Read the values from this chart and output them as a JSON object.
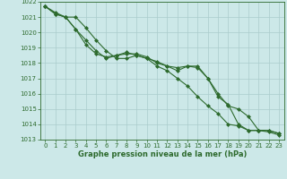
{
  "xlabel": "Graphe pression niveau de la mer (hPa)",
  "x": [
    0,
    1,
    2,
    3,
    4,
    5,
    6,
    7,
    8,
    9,
    10,
    11,
    12,
    13,
    14,
    15,
    16,
    17,
    18,
    19,
    20,
    21,
    22,
    23
  ],
  "line1": [
    1021.7,
    1021.2,
    1021.0,
    1021.0,
    1020.3,
    1019.5,
    1018.8,
    1018.3,
    1018.3,
    1018.5,
    1018.3,
    1018.1,
    1017.8,
    1017.7,
    1017.8,
    1017.7,
    1017.0,
    1015.8,
    1015.3,
    1014.0,
    1013.6,
    1013.6,
    1013.6,
    1013.4
  ],
  "line2": [
    1021.7,
    1021.2,
    1021.0,
    1020.2,
    1019.2,
    1018.6,
    1018.4,
    1018.5,
    1018.6,
    1018.6,
    1018.4,
    1018.0,
    1017.8,
    1017.5,
    1017.8,
    1017.8,
    1017.0,
    1016.0,
    1015.2,
    1015.0,
    1014.5,
    1013.6,
    1013.6,
    1013.4
  ],
  "line3": [
    1021.7,
    1021.3,
    1021.0,
    1020.2,
    1019.5,
    1018.8,
    1018.3,
    1018.5,
    1018.7,
    1018.5,
    1018.3,
    1017.8,
    1017.5,
    1017.0,
    1016.5,
    1015.8,
    1015.2,
    1014.7,
    1014.0,
    1013.9,
    1013.6,
    1013.6,
    1013.5,
    1013.3
  ],
  "line_color": "#2d6a2d",
  "bg_color": "#cce8e8",
  "grid_color": "#aacccc",
  "ylim": [
    1013,
    1022
  ],
  "yticks": [
    1013,
    1014,
    1015,
    1016,
    1017,
    1018,
    1019,
    1020,
    1021,
    1022
  ],
  "xticks": [
    0,
    1,
    2,
    3,
    4,
    5,
    6,
    7,
    8,
    9,
    10,
    11,
    12,
    13,
    14,
    15,
    16,
    17,
    18,
    19,
    20,
    21,
    22,
    23
  ],
  "marker": "D",
  "markersize": 2.0,
  "linewidth": 0.8,
  "label_fontsize": 6.0,
  "tick_fontsize": 5.0
}
